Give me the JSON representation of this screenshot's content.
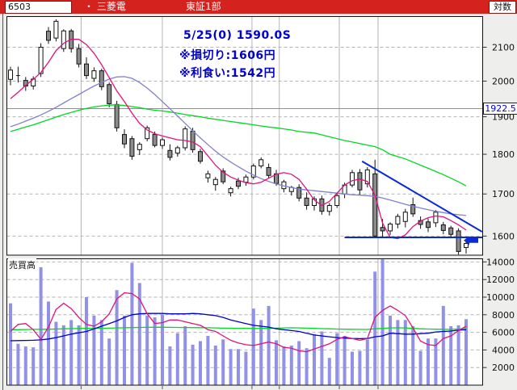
{
  "header": {
    "stock_code": "6503",
    "bullet": "・",
    "stock_name": "三菱電",
    "market": "東証1部",
    "scale_label": "対数"
  },
  "annotation": {
    "line1": "5/25(0) 1590.0S",
    "line2": "※損切り:1606円",
    "line3": "※利食い:1542円"
  },
  "colors": {
    "titlebar": "#d4231e",
    "annotation_text": "#0000cd",
    "candle_up_fill": "#ffffff",
    "candle_down_fill": "#8c8c8c",
    "volume_bar": "#9191e8",
    "ma_short": "#e1127e",
    "ma_mid_price": "#8080cc",
    "ma_long": "#00d822",
    "ma_mid_volume": "#0000c8",
    "overlay_blue": "#0a2ad2",
    "grid": "#b4b4b4",
    "current_price_line": "#8e8e8e"
  },
  "chart_data": {
    "type": "candlestick_with_volume",
    "title": "6503 三菱電 東証1部",
    "price_axis": {
      "scale": "log",
      "ticks": [
        2100,
        2000,
        1900,
        1800,
        1700,
        1600
      ],
      "current_price": 1922.5
    },
    "volume_axis": {
      "label": "売買高",
      "ticks": [
        14000,
        12000,
        10000,
        8000,
        6000,
        4000,
        2000
      ]
    },
    "candles": [
      [
        2005,
        2042,
        1988,
        2032
      ],
      [
        2016,
        2042,
        1996,
        2016
      ],
      [
        2002,
        2012,
        1972,
        1986
      ],
      [
        1986,
        2014,
        1976,
        2006
      ],
      [
        2022,
        2112,
        2012,
        2100
      ],
      [
        2149,
        2162,
        2110,
        2121
      ],
      [
        2128,
        2186,
        2118,
        2180
      ],
      [
        2096,
        2155,
        2086,
        2150
      ],
      [
        2150,
        2156,
        2084,
        2096
      ],
      [
        2096,
        2110,
        2040,
        2050
      ],
      [
        2050,
        2070,
        2006,
        2016
      ],
      [
        2008,
        2040,
        1998,
        2030
      ],
      [
        2030,
        2036,
        1974,
        1984
      ],
      [
        1990,
        1996,
        1926,
        1936
      ],
      [
        1934,
        1944,
        1860,
        1870
      ],
      [
        1852,
        1866,
        1816,
        1827
      ],
      [
        1841,
        1848,
        1786,
        1795
      ],
      [
        1812,
        1832,
        1798,
        1826
      ],
      [
        1841,
        1876,
        1834,
        1870
      ],
      [
        1852,
        1860,
        1818,
        1823
      ],
      [
        1823,
        1844,
        1814,
        1838
      ],
      [
        1810,
        1826,
        1784,
        1792
      ],
      [
        1803,
        1822,
        1794,
        1817
      ],
      [
        1817,
        1874,
        1810,
        1867
      ],
      [
        1861,
        1870,
        1804,
        1812
      ],
      [
        1807,
        1814,
        1776,
        1782
      ],
      [
        1740,
        1758,
        1728,
        1750
      ],
      [
        1723,
        1742,
        1708,
        1736
      ],
      [
        1757,
        1764,
        1724,
        1730
      ],
      [
        1703,
        1718,
        1694,
        1713
      ],
      [
        1732,
        1740,
        1712,
        1719
      ],
      [
        1729,
        1748,
        1720,
        1742
      ],
      [
        1742,
        1776,
        1736,
        1770
      ],
      [
        1770,
        1792,
        1764,
        1786
      ],
      [
        1766,
        1776,
        1740,
        1746
      ],
      [
        1750,
        1760,
        1720,
        1726
      ],
      [
        1713,
        1735,
        1704,
        1730
      ],
      [
        1706,
        1720,
        1696,
        1716
      ],
      [
        1716,
        1724,
        1682,
        1690
      ],
      [
        1690,
        1704,
        1662,
        1672
      ],
      [
        1672,
        1694,
        1660,
        1688
      ],
      [
        1688,
        1696,
        1650,
        1658
      ],
      [
        1658,
        1678,
        1648,
        1672
      ],
      [
        1672,
        1702,
        1666,
        1696
      ],
      [
        1700,
        1728,
        1690,
        1722
      ],
      [
        1722,
        1760,
        1716,
        1753
      ],
      [
        1753,
        1762,
        1697,
        1710
      ],
      [
        1725,
        1767,
        1716,
        1760
      ],
      [
        1750,
        1786,
        1596,
        1600
      ],
      [
        1620,
        1640,
        1598,
        1612
      ],
      [
        1612,
        1632,
        1602,
        1628
      ],
      [
        1628,
        1652,
        1618,
        1646
      ],
      [
        1634,
        1664,
        1620,
        1656
      ],
      [
        1674,
        1691,
        1645,
        1652
      ],
      [
        1636,
        1646,
        1617,
        1627
      ],
      [
        1633,
        1641,
        1609,
        1620
      ],
      [
        1631,
        1661,
        1621,
        1656
      ],
      [
        1626,
        1633,
        1604,
        1613
      ],
      [
        1619,
        1624,
        1597,
        1604
      ],
      [
        1612,
        1618,
        1558,
        1565
      ],
      [
        1574,
        1589,
        1560,
        1583
      ]
    ],
    "volumes": [
      9300,
      4700,
      4400,
      4300,
      13400,
      9500,
      7200,
      6800,
      7400,
      6800,
      10000,
      7900,
      7400,
      5300,
      10800,
      7900,
      13900,
      11600,
      7900,
      7700,
      8000,
      4400,
      5900,
      6700,
      4600,
      5000,
      5600,
      4500,
      5200,
      4100,
      4100,
      3800,
      8700,
      7400,
      9000,
      5100,
      4400,
      4500,
      5000,
      4200,
      5800,
      6100,
      3100,
      5900,
      5600,
      3800,
      3900,
      5200,
      12900,
      14300,
      7900,
      7400,
      7400,
      6700,
      3900,
      5300,
      5300,
      9000,
      6700,
      6800,
      7500
    ],
    "price_ma": {
      "short": [
        1950,
        1968,
        1988,
        2005,
        2025,
        2055,
        2090,
        2112,
        2124,
        2124,
        2108,
        2082,
        2048,
        2010,
        1972,
        1942,
        1910,
        1882,
        1864,
        1854,
        1848,
        1843,
        1838,
        1836,
        1832,
        1820,
        1796,
        1772,
        1754,
        1742,
        1734,
        1728,
        1725,
        1729,
        1739,
        1749,
        1753,
        1749,
        1736,
        1712,
        1685,
        1672,
        1682,
        1702,
        1722,
        1733,
        1737,
        1731,
        1697,
        1630,
        1597,
        1594,
        1603,
        1622,
        1635,
        1643,
        1647,
        1645,
        1636,
        1626,
        1614
      ],
      "mid": [
        1873,
        1880,
        1888,
        1896,
        1905,
        1915,
        1926,
        1938,
        1950,
        1962,
        1974,
        1986,
        1996,
        2006,
        2012,
        2013,
        2008,
        1996,
        1980,
        1962,
        1942,
        1922,
        1902,
        1882,
        1862,
        1843,
        1825,
        1808,
        1793,
        1780,
        1768,
        1757,
        1747,
        1738,
        1731,
        1725,
        1720,
        1716,
        1712,
        1710,
        1708,
        1706,
        1704,
        1702,
        1700,
        1698,
        1697,
        1696,
        1694,
        1690,
        1685,
        1680,
        1675,
        1670,
        1666,
        1662,
        1658,
        1655,
        1652,
        1650,
        1648
      ],
      "long": [
        1860,
        1866,
        1872,
        1878,
        1885,
        1892,
        1899,
        1906,
        1912,
        1918,
        1923,
        1927,
        1930,
        1932,
        1933,
        1931,
        1928,
        1925,
        1921,
        1918,
        1916,
        1913,
        1910,
        1906,
        1903,
        1900,
        1896,
        1893,
        1890,
        1887,
        1884,
        1881,
        1878,
        1875,
        1872,
        1870,
        1867,
        1864,
        1860,
        1858,
        1856,
        1851,
        1846,
        1841,
        1836,
        1832,
        1828,
        1824,
        1820,
        1812,
        1800,
        1794,
        1788,
        1780,
        1772,
        1764,
        1756,
        1748,
        1739,
        1730,
        1720
      ]
    },
    "volume_ma": {
      "short": [
        6100,
        6900,
        7000,
        6300,
        5200,
        6600,
        8600,
        9300,
        8700,
        7700,
        6900,
        6700,
        7200,
        8100,
        9800,
        10500,
        10400,
        9800,
        8100,
        7000,
        7100,
        7400,
        7400,
        7200,
        7000,
        6800,
        6300,
        6100,
        5600,
        5100,
        4800,
        4600,
        4500,
        4700,
        4900,
        4700,
        4300,
        4200,
        3900,
        3800,
        4100,
        4400,
        4700,
        5200,
        5500,
        5300,
        5100,
        5300,
        7700,
        8500,
        9000,
        8500,
        7900,
        6500,
        5000,
        4600,
        4500,
        5300,
        5600,
        6200,
        6700
      ],
      "mid": [
        5050,
        5060,
        5080,
        5100,
        5150,
        5250,
        5400,
        5600,
        5800,
        5950,
        6100,
        6400,
        6700,
        7000,
        7300,
        7700,
        8000,
        8100,
        8150,
        8150,
        8150,
        8100,
        8100,
        8100,
        8150,
        8100,
        8000,
        7900,
        7700,
        7400,
        7200,
        7000,
        6800,
        6700,
        6600,
        6400,
        6300,
        6200,
        6100,
        5900,
        5700,
        5600,
        5500,
        5400,
        5350,
        5300,
        5280,
        5300,
        5500,
        5600,
        5900,
        5850,
        5800,
        5800,
        5850,
        5900,
        6050,
        6100,
        6150,
        6250,
        6300
      ],
      "long": [
        6300,
        6300,
        6320,
        6340,
        6350,
        6360,
        6380,
        6400,
        6420,
        6440,
        6450,
        6460,
        6470,
        6480,
        6500,
        6520,
        6540,
        6560,
        6570,
        6580,
        6580,
        6570,
        6560,
        6550,
        6540,
        6530,
        6520,
        6500,
        6480,
        6470,
        6460,
        6450,
        6440,
        6450,
        6460,
        6480,
        6500,
        6520,
        6500,
        6480,
        6450,
        6420,
        6400,
        6380,
        6360,
        6350,
        6340,
        6330,
        6400,
        6450,
        6500,
        6520,
        6500,
        6450,
        6400,
        6380,
        6360,
        6350,
        6340,
        6380,
        6420
      ]
    },
    "overlays": {
      "support_line": {
        "price": 1597,
        "from_index": 44
      },
      "trend_line": {
        "from": {
          "index": 46.3,
          "price": 1782
        },
        "to": {
          "index": 62.1,
          "price": 1610
        }
      },
      "entry_marker": {
        "type": "left-arrow",
        "price": 1590
      },
      "current_price_line": 1922.5
    },
    "vertical_gridline_indices": [
      9.3,
      20.0,
      31.8,
      35.4,
      43.3,
      48.4
    ]
  }
}
